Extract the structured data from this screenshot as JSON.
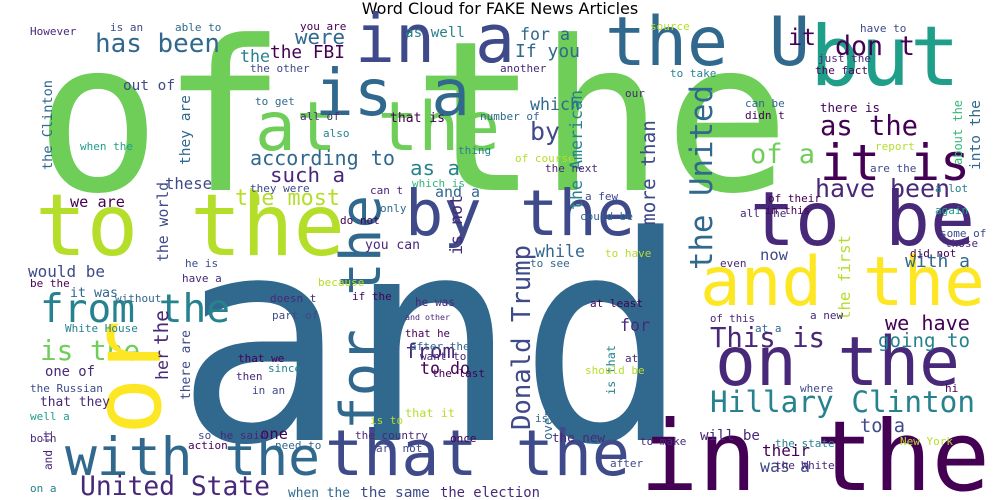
{
  "chart_data": {
    "type": "wordcloud",
    "title": "Word Cloud for FAKE News Articles",
    "words": [
      "of the",
      "and",
      "in the",
      "to the",
      "at the",
      "is a",
      "in a",
      "the U",
      "but",
      "it is",
      "to be",
      "and the",
      "on the",
      "by the",
      "with the",
      "that the",
      "from the",
      "is the",
      "or",
      "for the",
      "Donald Trump",
      "the United",
      "Hillary Clinton",
      "This is",
      "United State",
      "has been",
      "have been",
      "as the",
      "of a",
      "it",
      "don t",
      "If you",
      "for a",
      "as a",
      "as well",
      "and a",
      "such a",
      "according to",
      "the most",
      "the FBI",
      "the",
      "were",
      "out of",
      "that is",
      "which",
      "by",
      "more than",
      "the American",
      "is not",
      "while",
      "you can",
      "from",
      "to do",
      "that it",
      "is that",
      "over the",
      "for",
      "the new",
      "will be",
      "was a",
      "their",
      "to a",
      "going to",
      "we have",
      "with a",
      "the first",
      "about the",
      "into the",
      "there is",
      "the world",
      "the",
      "the Clinton",
      "we are",
      "would be",
      "it was",
      "one of",
      "that they",
      "and it",
      "her",
      "there are",
      "they are",
      "these",
      "that he",
      "he was",
      "and other",
      "one",
      "when the",
      "the same",
      "the election",
      "now",
      "in this",
      "of this",
      "However",
      "is an",
      "able to",
      "you are",
      "source",
      "have to",
      "just the",
      "the fact",
      "to take",
      "another",
      "the other",
      "to get",
      "all of",
      "also",
      "when the",
      "can be",
      "didn t",
      "report",
      "are the",
      "the next",
      "of course",
      "number of",
      "thing",
      "our",
      "they were",
      "do not",
      "only",
      "can t",
      "which is",
      "a few",
      "could be",
      "all the",
      "of their",
      "a lot",
      "again",
      "some of",
      "those",
      "did not",
      "to see",
      "to have",
      "even",
      "at least",
      "White House",
      "he is",
      "have a",
      "be the",
      "without",
      "doesn t",
      "because",
      "part of",
      "if the",
      "after the",
      "want to",
      "that we",
      "since",
      "then",
      "in an",
      "the last",
      "should be",
      "at",
      "the Russian",
      "well a",
      "both",
      "on a",
      "so",
      "he said",
      "need to",
      "action",
      "is to",
      "the country",
      "are not",
      "once",
      "is no",
      "to make",
      "after",
      "the state",
      "the White",
      "New York",
      "where",
      "hi",
      "at a",
      "a new"
    ]
  }
}
